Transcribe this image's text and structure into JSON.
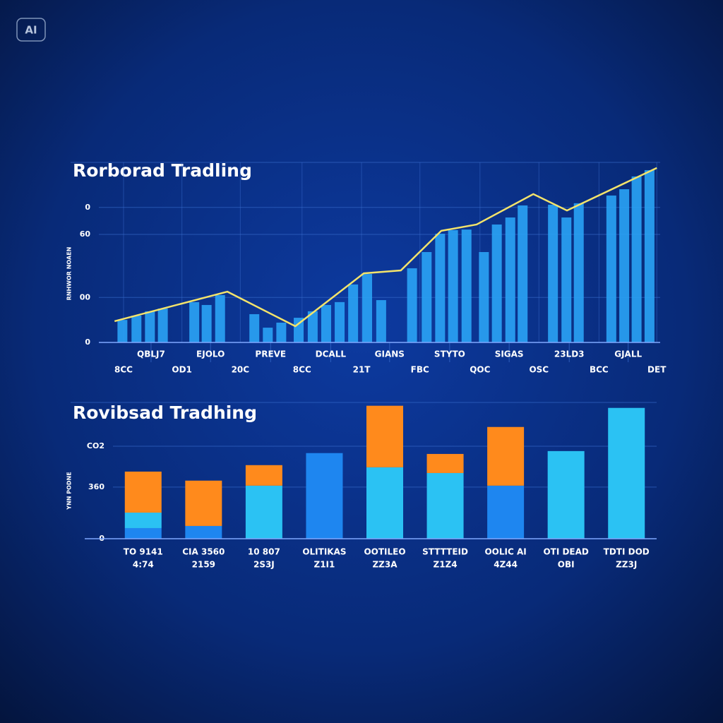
{
  "badge": "AI",
  "chart_data": [
    {
      "type": "combo",
      "title": "Rorborad Tradling",
      "ylabel": "RNHWOR NOAEN",
      "xlim": [
        0,
        100
      ],
      "ylim": [
        0,
        100
      ],
      "yticks": [
        0,
        {
          "value": 25,
          "label": "00"
        },
        60,
        {
          "value": 75,
          "label": "0"
        }
      ],
      "xticks": [
        {
          "value": 9.3,
          "label": "QBLJ7"
        },
        {
          "value": 19.9,
          "label": "EJOLO"
        },
        {
          "value": 30.6,
          "label": "PREVE"
        },
        {
          "value": 41.3,
          "label": "DCALL"
        },
        {
          "value": 51.8,
          "label": "GIANS"
        },
        {
          "value": 62.5,
          "label": "STYTO"
        },
        {
          "value": 73.1,
          "label": "SIGAS"
        },
        {
          "value": 83.8,
          "label": "23LD3"
        },
        {
          "value": 94.3,
          "label": "GJALL"
        }
      ],
      "xticks2": [
        {
          "value": 4.4,
          "label": "8CC"
        },
        {
          "value": 14.8,
          "label": "OD1"
        },
        {
          "value": 25.2,
          "label": "20C"
        },
        {
          "value": 36.2,
          "label": "8CC"
        },
        {
          "value": 46.8,
          "label": "21T"
        },
        {
          "value": 57.2,
          "label": "FBC"
        },
        {
          "value": 67.9,
          "label": "QOC"
        },
        {
          "value": 78.4,
          "label": "OSC"
        },
        {
          "value": 89.1,
          "label": "BCC"
        },
        {
          "value": 99.4,
          "label": "DET"
        }
      ],
      "grid": true,
      "bars": {
        "color": "#2aa3f5",
        "x": [
          4.2,
          6.7,
          9.1,
          11.4,
          17,
          19.2,
          21.6,
          27.7,
          30.1,
          32.5,
          35.6,
          38.1,
          40.5,
          42.9,
          45.3,
          47.8,
          50.3,
          55.8,
          58.4,
          60.8,
          63.1,
          65.5,
          68.6,
          70.9,
          73.3,
          75.5,
          80.9,
          83.3,
          85.5,
          91.3,
          93.6,
          95.8,
          98.1
        ],
        "values": [
          12.5,
          14.9,
          17.3,
          18.8,
          22.4,
          20.8,
          26.3,
          15.7,
          8.2,
          11,
          13.7,
          17.3,
          20.8,
          22.4,
          32.2,
          38,
          23.5,
          41.2,
          50.2,
          60.4,
          62.4,
          62.7,
          50.2,
          65.5,
          69.4,
          76.1,
          76.5,
          69.4,
          77.3,
          81.6,
          85.1,
          92.2,
          95.7
        ]
      },
      "line": {
        "color": "#f3e36b",
        "x": [
          2.8,
          22.9,
          35,
          47.2,
          53.8,
          61,
          67.3,
          77.4,
          83.4,
          99.4
        ],
        "values": [
          11.8,
          28.2,
          9,
          38.4,
          40,
          62,
          65.5,
          82.4,
          73.3,
          96.9
        ]
      }
    },
    {
      "type": "bar",
      "title": "Rovibsad Tradhing",
      "ylabel": "YNN PODNE",
      "ylim": [
        0,
        950
      ],
      "yticks": [
        0,
        360,
        {
          "value": 645,
          "label": "CO2"
        }
      ],
      "categories": [
        "TO 9141",
        "CIA 3560",
        "10 807",
        "OLITIKAS",
        "OOTILEO",
        "STTTTEID",
        "OOLIC AI",
        "OTI DEAD",
        "TDTI DOD"
      ],
      "sublabels": [
        "4:74",
        "2159",
        "2S3J",
        "Z1I1",
        "ZZ3A",
        "Z1Z4",
        "4Z44",
        "OBI",
        "ZZ3J"
      ],
      "series": [
        {
          "color": "#1e86f0",
          "values": [
            74,
            89,
            0,
            597,
            0,
            0,
            370,
            0,
            0
          ]
        },
        {
          "color": "#2bc2f3",
          "values": [
            108,
            0,
            370,
            0,
            498,
            458,
            0,
            611,
            912
          ]
        },
        {
          "color": "#ff8a1c",
          "values": [
            286,
            316,
            143,
            0,
            429,
            133,
            409,
            0,
            0
          ]
        }
      ]
    }
  ]
}
